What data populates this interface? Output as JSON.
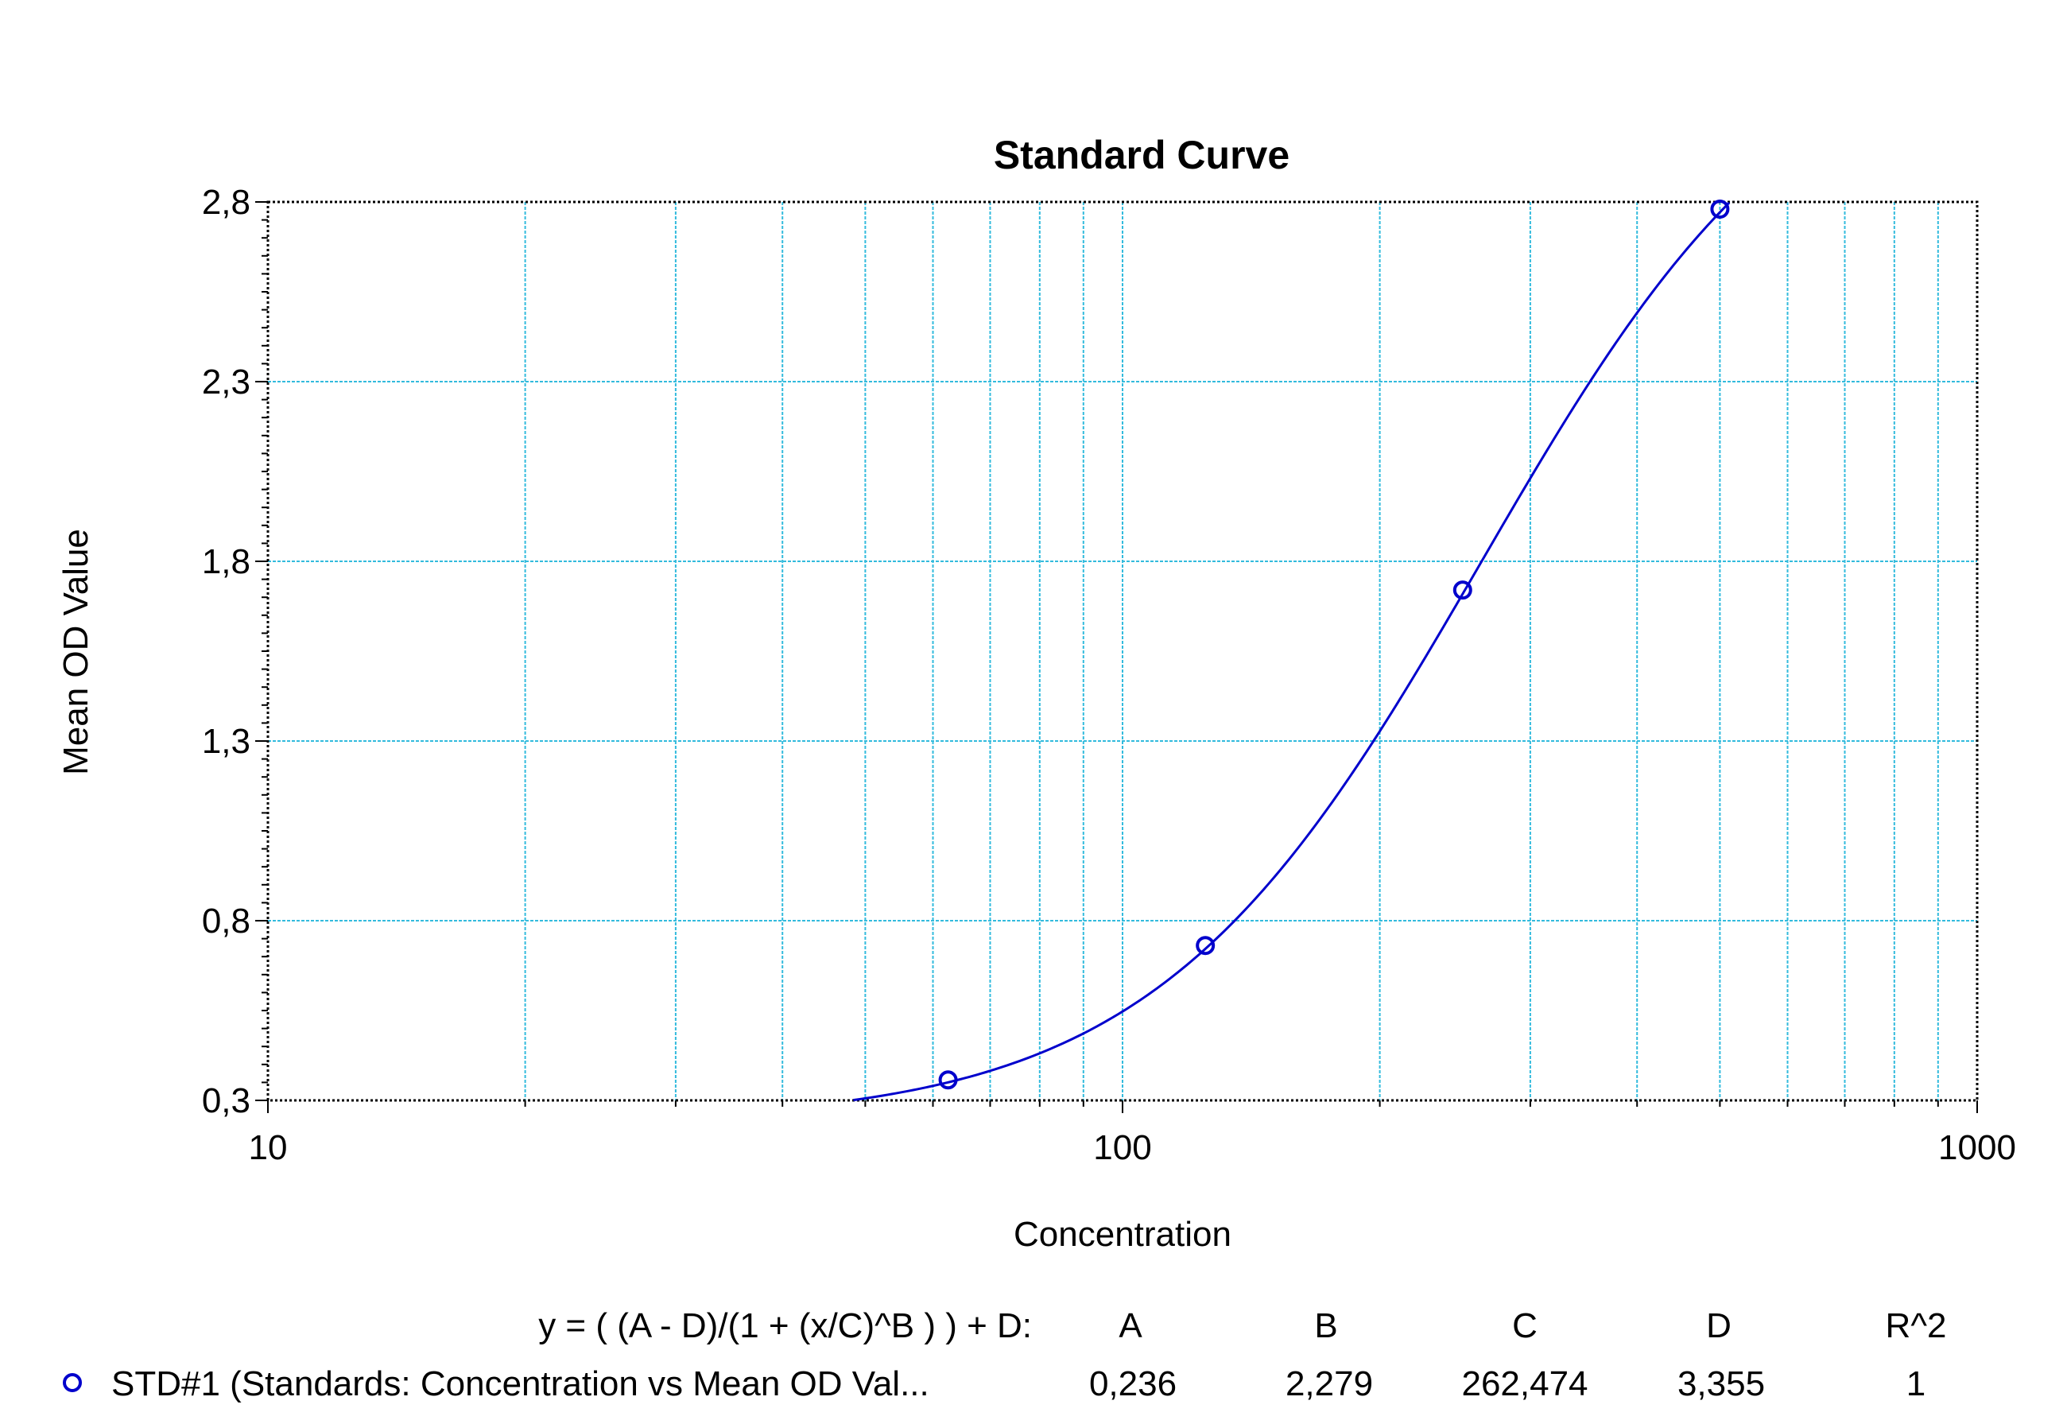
{
  "chart_data": {
    "type": "scatter",
    "title": "Standard Curve",
    "xlabel": "Concentration",
    "ylabel": "Mean OD Value",
    "x_scale": "log",
    "xlim": [
      10,
      1000
    ],
    "ylim": [
      0.3,
      2.8
    ],
    "grid": true,
    "x_ticks": [
      {
        "value": 10,
        "label": "10"
      },
      {
        "value": 100,
        "label": "100"
      },
      {
        "value": 1000,
        "label": "1000"
      }
    ],
    "y_ticks": [
      {
        "value": 0.3,
        "label": "0,3"
      },
      {
        "value": 0.8,
        "label": "0,8"
      },
      {
        "value": 1.3,
        "label": "1,3"
      },
      {
        "value": 1.8,
        "label": "1,8"
      },
      {
        "value": 2.3,
        "label": "2,3"
      },
      {
        "value": 2.8,
        "label": "2,8"
      }
    ],
    "series": [
      {
        "name": "STD#1 (Standards: Concentration vs Mean OD Val...",
        "color": "#0000cc",
        "marker": "circle",
        "points": [
          {
            "x": 62.5,
            "y": 0.357
          },
          {
            "x": 125,
            "y": 0.731
          },
          {
            "x": 250,
            "y": 1.72
          },
          {
            "x": 500,
            "y": 2.78
          }
        ],
        "fit": {
          "model": "4PL",
          "A": 0.236,
          "B": 2.279,
          "C": 262.474,
          "D": 3.355,
          "R2": 1
        }
      }
    ],
    "legend": {
      "position": "bottom",
      "equation": "y = ( (A - D)/(1 + (x/C)^B ) ) + D:",
      "headers": [
        "A",
        "B",
        "C",
        "D",
        "R^2"
      ],
      "rows": [
        {
          "label": "STD#1 (Standards: Concentration vs Mean OD Val...",
          "values": [
            "0,236",
            "2,279",
            "262,474",
            "3,355",
            "1"
          ]
        }
      ]
    }
  }
}
